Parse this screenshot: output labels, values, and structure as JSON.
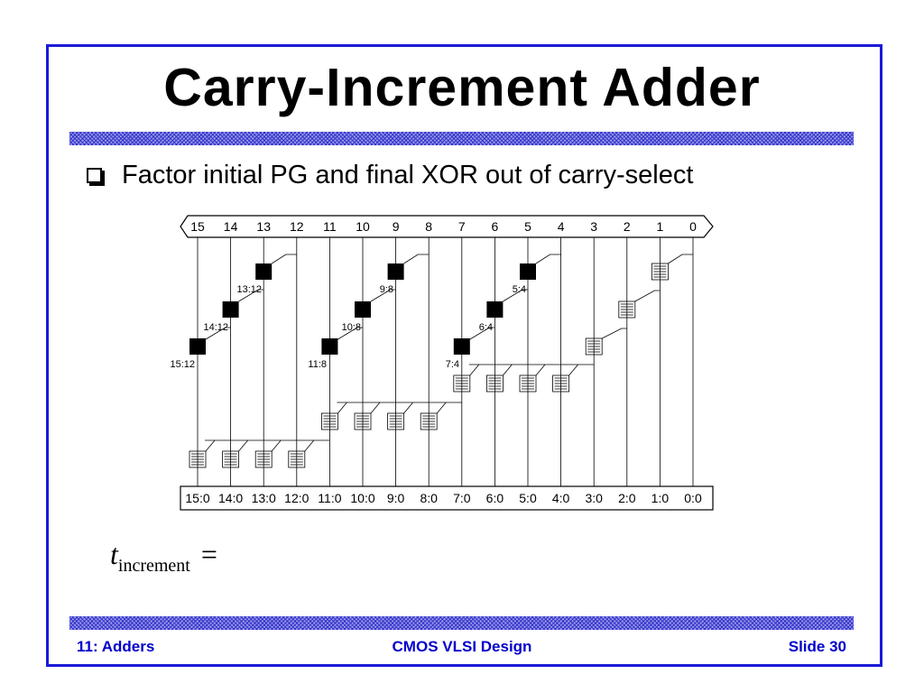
{
  "slide": {
    "title": "Carry-Increment Adder",
    "bullet": "Factor initial PG and final XOR out of carry-select",
    "formula": {
      "symbol": "t",
      "subscript": "increment",
      "operator": "="
    }
  },
  "diagram": {
    "bit_labels": [
      "15",
      "14",
      "13",
      "12",
      "11",
      "10",
      "9",
      "8",
      "7",
      "6",
      "5",
      "4",
      "3",
      "2",
      "1",
      "0"
    ],
    "output_labels": [
      "15:0",
      "14:0",
      "13:0",
      "12:0",
      "11:0",
      "10:0",
      "9:0",
      "8:0",
      "7:0",
      "6:0",
      "5:0",
      "4:0",
      "3:0",
      "2:0",
      "1:0",
      "0:0"
    ],
    "black_cell_labels": [
      "13:12",
      "14:12",
      "15:12",
      "9:8",
      "10:8",
      "11:8",
      "5:4",
      "6:4",
      "7:4"
    ]
  },
  "footer": {
    "left": "11: Adders",
    "center": "CMOS VLSI Design",
    "right": "Slide 30"
  },
  "colors": {
    "frame": "#1a1ad6",
    "footer_text": "#0000cc",
    "hatch": "#3333cc"
  }
}
